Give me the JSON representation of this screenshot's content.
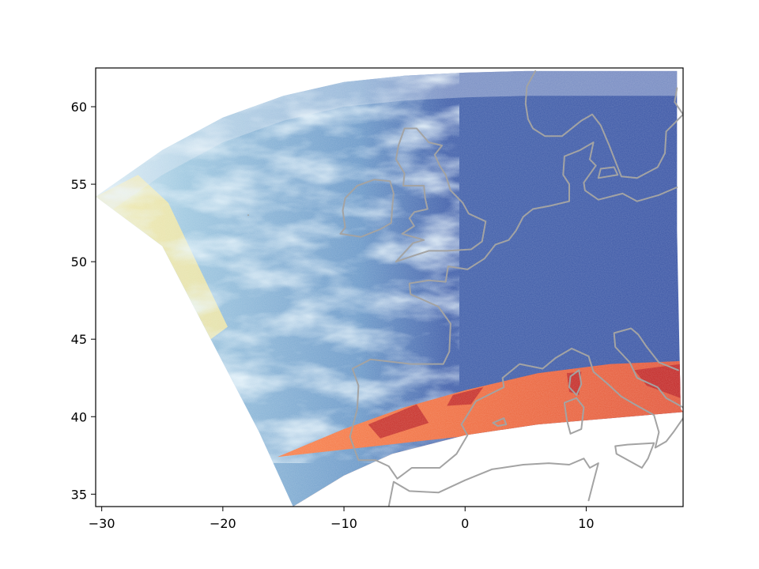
{
  "chart_data": {
    "type": "heatmap",
    "title": "",
    "xlabel": "",
    "ylabel": "",
    "xlim": [
      -30.5,
      18
    ],
    "ylim": [
      34.2,
      62.5
    ],
    "x_ticks": [
      -30,
      -20,
      -10,
      0,
      10
    ],
    "y_ticks": [
      35,
      40,
      45,
      50,
      55,
      60
    ],
    "x_tick_labels": [
      "−30",
      "−20",
      "−10",
      "0",
      "10"
    ],
    "y_tick_labels": [
      "35",
      "40",
      "45",
      "50",
      "55",
      "60"
    ],
    "grid": false,
    "legend": "none",
    "colormap": "RdYlBu_r",
    "colors": {
      "coastline": "#a3a3a3",
      "ocean_low": "#3a55a5",
      "cloud_light": "#cfe6f2",
      "warm_band": "#f26d3c",
      "hot_spot": "#b5161f",
      "pale_yellow": "#f7eea6"
    },
    "swath_edges": {
      "north_edge": [
        [
          -30.5,
          54.2
        ],
        [
          -25,
          57.2
        ],
        [
          -20,
          59.3
        ],
        [
          -15,
          60.7
        ],
        [
          -10,
          61.6
        ],
        [
          -5,
          62.0
        ],
        [
          0,
          62.2
        ],
        [
          5,
          62.3
        ],
        [
          10,
          62.3
        ],
        [
          18,
          62.3
        ]
      ],
      "east_edge": [
        [
          17.5,
          62.3
        ],
        [
          17.5,
          52
        ],
        [
          17.8,
          40.5
        ]
      ],
      "south_edge": [
        [
          18,
          40.3
        ],
        [
          12,
          39.9
        ],
        [
          6,
          39.5
        ],
        [
          0,
          38.8
        ],
        [
          -6,
          37.6
        ],
        [
          -10,
          36.2
        ],
        [
          -14.2,
          34.2
        ]
      ],
      "west_edge": [
        [
          -14.2,
          34.2
        ],
        [
          -17,
          39
        ],
        [
          -21,
          45
        ],
        [
          -25,
          51
        ],
        [
          -30.5,
          54.2
        ]
      ]
    },
    "warm_band_north_edge": [
      [
        -15.5,
        37.4
      ],
      [
        -10,
        39.2
      ],
      [
        -5,
        40.6
      ],
      [
        0,
        41.7
      ],
      [
        6,
        42.8
      ],
      [
        12,
        43.4
      ],
      [
        18,
        43.6
      ]
    ],
    "cloud_frontier_lon": -3,
    "coastlines": [
      {
        "name": "ireland",
        "points": [
          [
            -10.3,
            51.8
          ],
          [
            -9.9,
            52.2
          ],
          [
            -10.1,
            53.3
          ],
          [
            -9.9,
            54.1
          ],
          [
            -8.9,
            54.9
          ],
          [
            -7.5,
            55.3
          ],
          [
            -6.2,
            55.2
          ],
          [
            -5.9,
            54.4
          ],
          [
            -6.0,
            53.6
          ],
          [
            -6.1,
            52.5
          ],
          [
            -7.0,
            52.1
          ],
          [
            -8.6,
            51.6
          ],
          [
            -10.3,
            51.8
          ]
        ]
      },
      {
        "name": "great-britain",
        "points": [
          [
            -5.7,
            50.0
          ],
          [
            -4.2,
            50.4
          ],
          [
            -3.0,
            50.7
          ],
          [
            -1.5,
            50.7
          ],
          [
            0.5,
            50.8
          ],
          [
            1.4,
            51.3
          ],
          [
            1.7,
            52.6
          ],
          [
            0.3,
            53.1
          ],
          [
            -0.2,
            53.8
          ],
          [
            -1.2,
            54.6
          ],
          [
            -1.6,
            55.6
          ],
          [
            -2.1,
            56.2
          ],
          [
            -2.5,
            56.9
          ],
          [
            -1.9,
            57.5
          ],
          [
            -3.0,
            57.7
          ],
          [
            -4.0,
            58.6
          ],
          [
            -5.0,
            58.6
          ],
          [
            -5.5,
            57.5
          ],
          [
            -5.7,
            56.6
          ],
          [
            -5.0,
            55.7
          ],
          [
            -5.1,
            54.9
          ],
          [
            -3.4,
            54.9
          ],
          [
            -3.3,
            54.1
          ],
          [
            -3.1,
            53.4
          ],
          [
            -4.2,
            53.2
          ],
          [
            -4.6,
            52.8
          ],
          [
            -4.2,
            52.3
          ],
          [
            -5.2,
            51.8
          ],
          [
            -3.4,
            51.4
          ],
          [
            -4.3,
            51.2
          ],
          [
            -5.7,
            50.0
          ]
        ]
      },
      {
        "name": "iberia",
        "points": [
          [
            -1.8,
            43.4
          ],
          [
            -4.5,
            43.4
          ],
          [
            -7.8,
            43.7
          ],
          [
            -9.3,
            43.1
          ],
          [
            -8.8,
            42.0
          ],
          [
            -8.9,
            40.5
          ],
          [
            -9.5,
            38.7
          ],
          [
            -8.8,
            37.2
          ],
          [
            -7.4,
            37.2
          ],
          [
            -6.3,
            36.8
          ],
          [
            -5.6,
            36.0
          ],
          [
            -4.4,
            36.7
          ],
          [
            -2.1,
            36.7
          ],
          [
            -0.7,
            37.6
          ],
          [
            0.2,
            38.8
          ],
          [
            -0.3,
            39.5
          ],
          [
            0.9,
            41.0
          ],
          [
            3.2,
            41.9
          ],
          [
            3.1,
            42.5
          ]
        ]
      },
      {
        "name": "france-atlantic",
        "points": [
          [
            3.1,
            42.5
          ],
          [
            4.5,
            43.4
          ],
          [
            6.4,
            43.1
          ],
          [
            7.5,
            43.8
          ]
        ]
      },
      {
        "name": "france-north",
        "points": [
          [
            -1.8,
            43.4
          ],
          [
            -1.3,
            44.2
          ],
          [
            -1.2,
            46.0
          ],
          [
            -2.2,
            47.1
          ],
          [
            -4.5,
            47.9
          ],
          [
            -4.6,
            48.6
          ],
          [
            -3.0,
            48.8
          ],
          [
            -1.6,
            48.7
          ],
          [
            -1.4,
            49.7
          ],
          [
            0.2,
            49.5
          ],
          [
            1.6,
            50.2
          ],
          [
            2.5,
            51.1
          ],
          [
            3.6,
            51.4
          ],
          [
            4.2,
            52.0
          ],
          [
            4.8,
            52.9
          ],
          [
            5.6,
            53.4
          ],
          [
            7.0,
            53.6
          ],
          [
            8.6,
            53.9
          ],
          [
            8.6,
            55.0
          ],
          [
            8.1,
            55.6
          ],
          [
            8.2,
            56.8
          ],
          [
            9.5,
            57.2
          ],
          [
            10.6,
            57.7
          ],
          [
            10.3,
            56.6
          ],
          [
            10.8,
            56.2
          ],
          [
            9.8,
            55.1
          ],
          [
            9.9,
            54.6
          ],
          [
            11.0,
            54.0
          ],
          [
            13.0,
            54.4
          ],
          [
            14.2,
            53.9
          ],
          [
            16.0,
            54.3
          ],
          [
            17.5,
            54.8
          ]
        ]
      },
      {
        "name": "danish-islands",
        "points": [
          [
            11.0,
            55.4
          ],
          [
            12.6,
            55.6
          ],
          [
            12.3,
            56.1
          ],
          [
            11.2,
            56.0
          ],
          [
            11.0,
            55.4
          ]
        ]
      },
      {
        "name": "scandinavia",
        "points": [
          [
            5.2,
            59.2
          ],
          [
            5.0,
            60.2
          ],
          [
            5.1,
            61.3
          ],
          [
            5.8,
            62.3
          ]
        ]
      },
      {
        "name": "sweden-south",
        "points": [
          [
            17.5,
            61.2
          ],
          [
            17.3,
            60.3
          ],
          [
            18.0,
            59.5
          ],
          [
            16.6,
            58.4
          ],
          [
            16.5,
            57.0
          ],
          [
            15.9,
            56.1
          ],
          [
            14.2,
            55.4
          ],
          [
            12.9,
            55.5
          ],
          [
            12.5,
            56.3
          ],
          [
            11.9,
            57.5
          ],
          [
            11.2,
            58.8
          ],
          [
            10.5,
            59.5
          ],
          [
            9.6,
            59.1
          ],
          [
            8.0,
            58.1
          ],
          [
            6.6,
            58.1
          ],
          [
            5.6,
            58.6
          ],
          [
            5.2,
            59.2
          ]
        ]
      },
      {
        "name": "italy-corsica",
        "points": [
          [
            7.5,
            43.8
          ],
          [
            8.8,
            44.4
          ],
          [
            10.2,
            43.9
          ],
          [
            10.6,
            42.9
          ],
          [
            11.8,
            42.1
          ],
          [
            12.9,
            41.3
          ],
          [
            14.0,
            40.8
          ],
          [
            15.6,
            40.1
          ],
          [
            16.0,
            39.0
          ],
          [
            15.7,
            38.0
          ],
          [
            16.6,
            38.4
          ],
          [
            17.2,
            39.0
          ],
          [
            18.0,
            39.9
          ]
        ]
      },
      {
        "name": "italy-adriatic",
        "points": [
          [
            18.0,
            40.6
          ],
          [
            16.6,
            41.2
          ],
          [
            15.9,
            41.9
          ],
          [
            14.2,
            42.5
          ],
          [
            13.6,
            43.5
          ],
          [
            12.4,
            44.5
          ],
          [
            12.3,
            45.4
          ],
          [
            13.7,
            45.7
          ],
          [
            14.3,
            45.3
          ],
          [
            15.0,
            44.5
          ],
          [
            16.0,
            43.5
          ],
          [
            17.6,
            43.0
          ]
        ]
      },
      {
        "name": "corsica",
        "points": [
          [
            9.4,
            43.0
          ],
          [
            9.6,
            42.1
          ],
          [
            9.2,
            41.4
          ],
          [
            8.6,
            41.9
          ],
          [
            8.7,
            42.6
          ],
          [
            9.4,
            43.0
          ]
        ]
      },
      {
        "name": "sardinia",
        "points": [
          [
            9.2,
            41.2
          ],
          [
            9.8,
            40.6
          ],
          [
            9.6,
            39.2
          ],
          [
            8.7,
            38.9
          ],
          [
            8.4,
            39.8
          ],
          [
            8.2,
            40.9
          ],
          [
            9.2,
            41.2
          ]
        ]
      },
      {
        "name": "sicily",
        "points": [
          [
            12.4,
            38.1
          ],
          [
            13.4,
            38.2
          ],
          [
            15.6,
            38.3
          ],
          [
            15.1,
            37.3
          ],
          [
            14.6,
            36.7
          ],
          [
            12.5,
            37.6
          ],
          [
            12.4,
            38.1
          ]
        ]
      },
      {
        "name": "balearic",
        "points": [
          [
            2.3,
            39.6
          ],
          [
            3.2,
            39.9
          ],
          [
            3.4,
            39.5
          ],
          [
            2.7,
            39.4
          ],
          [
            2.3,
            39.6
          ]
        ]
      },
      {
        "name": "africa",
        "points": [
          [
            -6.3,
            34.2
          ],
          [
            -5.9,
            35.8
          ],
          [
            -4.6,
            35.2
          ],
          [
            -2.2,
            35.1
          ],
          [
            0.0,
            35.9
          ],
          [
            2.2,
            36.6
          ],
          [
            4.8,
            36.9
          ],
          [
            6.9,
            37.0
          ],
          [
            8.6,
            36.9
          ],
          [
            9.8,
            37.3
          ],
          [
            10.3,
            36.7
          ],
          [
            11.0,
            37.0
          ],
          [
            10.6,
            35.8
          ],
          [
            10.2,
            34.6
          ]
        ]
      },
      {
        "name": "iceland-fragment",
        "points": [
          [
            -17.9,
            53.0
          ],
          [
            -17.9,
            53.0
          ]
        ]
      }
    ]
  }
}
